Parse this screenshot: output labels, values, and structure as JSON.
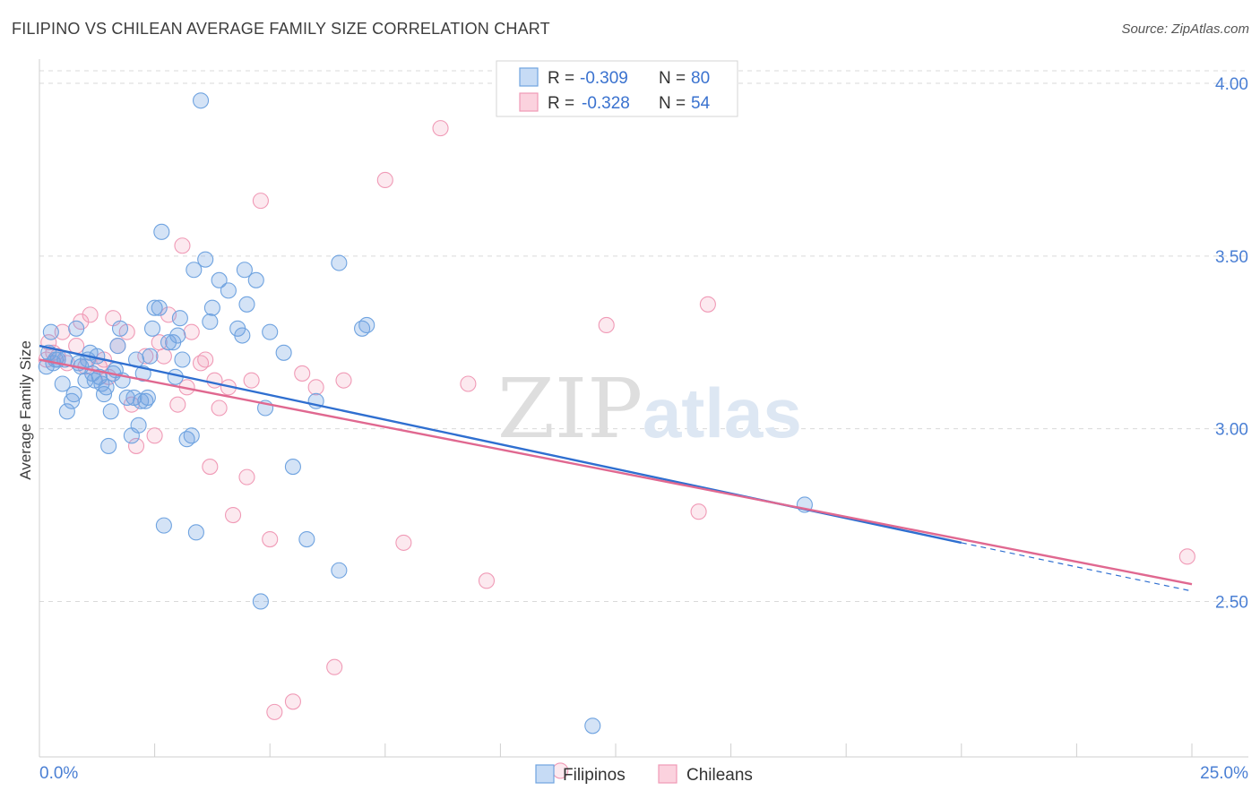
{
  "header": {
    "title": "FILIPINO VS CHILEAN AVERAGE FAMILY SIZE CORRELATION CHART",
    "source": "Source: ZipAtlas.com"
  },
  "colors": {
    "blue": "#6fa3e0",
    "blue_line": "#2f6fd0",
    "pink": "#f09ab6",
    "pink_line": "#e06890",
    "axis_text": "#4a7fd4",
    "grid": "#d9d9d9"
  },
  "legend_top": {
    "rows": [
      {
        "r_label": "R =",
        "r_value": "-0.309",
        "n_label": "N =",
        "n_value": "80"
      },
      {
        "r_label": "R =",
        "r_value": "-0.328",
        "n_label": "N =",
        "n_value": "54"
      }
    ]
  },
  "watermark": {
    "zip": "ZIP",
    "atlas": "atlas"
  },
  "chart_data": {
    "type": "scatter",
    "title": "FILIPINO VS CHILEAN AVERAGE FAMILY SIZE CORRELATION CHART",
    "xlabel": "",
    "ylabel": "Average Family Size",
    "xlim": [
      0,
      25
    ],
    "ylim": [
      2.05,
      4.07
    ],
    "x_tick_labels": [
      "0.0%",
      "25.0%"
    ],
    "y_ticks": [
      2.5,
      3.0,
      3.5,
      4.0
    ],
    "y_tick_labels": [
      "2.50",
      "3.00",
      "3.50",
      "4.00"
    ],
    "grid": true,
    "legend_position": "bottom-center",
    "series": [
      {
        "name": "Filipinos",
        "color": "#6fa3e0",
        "r": -0.309,
        "n": 80,
        "trend": {
          "x0": 0,
          "y0": 3.24,
          "x1": 20,
          "y1": 2.67,
          "dashed_to_x": 25,
          "dashed_to_y": 2.53
        },
        "points": [
          [
            0.2,
            3.22
          ],
          [
            0.25,
            3.28
          ],
          [
            0.3,
            3.19
          ],
          [
            0.4,
            3.2
          ],
          [
            0.5,
            3.13
          ],
          [
            0.6,
            3.05
          ],
          [
            0.7,
            3.08
          ],
          [
            0.75,
            3.1
          ],
          [
            0.8,
            3.29
          ],
          [
            0.9,
            3.18
          ],
          [
            1.0,
            3.14
          ],
          [
            1.05,
            3.2
          ],
          [
            1.1,
            3.22
          ],
          [
            1.2,
            3.14
          ],
          [
            1.25,
            3.21
          ],
          [
            1.3,
            3.15
          ],
          [
            1.4,
            3.1
          ],
          [
            1.5,
            2.95
          ],
          [
            1.55,
            3.05
          ],
          [
            1.6,
            3.16
          ],
          [
            1.7,
            3.24
          ],
          [
            1.75,
            3.29
          ],
          [
            1.8,
            3.14
          ],
          [
            1.9,
            3.09
          ],
          [
            2.0,
            2.98
          ],
          [
            2.1,
            3.2
          ],
          [
            2.15,
            3.01
          ],
          [
            2.2,
            3.08
          ],
          [
            2.25,
            3.16
          ],
          [
            2.3,
            3.08
          ],
          [
            2.4,
            3.21
          ],
          [
            2.45,
            3.29
          ],
          [
            2.5,
            3.35
          ],
          [
            2.6,
            3.35
          ],
          [
            2.65,
            3.57
          ],
          [
            2.7,
            2.72
          ],
          [
            2.8,
            3.25
          ],
          [
            2.9,
            3.25
          ],
          [
            2.95,
            3.15
          ],
          [
            3.0,
            3.27
          ],
          [
            3.05,
            3.32
          ],
          [
            3.1,
            3.2
          ],
          [
            3.2,
            2.97
          ],
          [
            3.3,
            2.98
          ],
          [
            3.35,
            3.46
          ],
          [
            3.5,
            3.95
          ],
          [
            3.6,
            3.49
          ],
          [
            3.7,
            3.31
          ],
          [
            3.75,
            3.35
          ],
          [
            3.9,
            3.43
          ],
          [
            4.1,
            3.4
          ],
          [
            4.3,
            3.29
          ],
          [
            4.4,
            3.27
          ],
          [
            4.45,
            3.46
          ],
          [
            4.5,
            3.36
          ],
          [
            4.7,
            3.43
          ],
          [
            4.8,
            2.5
          ],
          [
            4.9,
            3.06
          ],
          [
            5.0,
            3.28
          ],
          [
            5.3,
            3.22
          ],
          [
            5.5,
            2.89
          ],
          [
            5.8,
            2.68
          ],
          [
            6.0,
            3.08
          ],
          [
            6.5,
            3.48
          ],
          [
            7.0,
            3.29
          ],
          [
            7.1,
            3.3
          ],
          [
            3.4,
            2.7
          ],
          [
            6.5,
            2.59
          ],
          [
            12.0,
            2.14
          ],
          [
            16.6,
            2.78
          ],
          [
            0.15,
            3.18
          ],
          [
            0.35,
            3.2
          ],
          [
            0.55,
            3.2
          ],
          [
            0.85,
            3.19
          ],
          [
            1.15,
            3.16
          ],
          [
            1.35,
            3.13
          ],
          [
            1.45,
            3.12
          ],
          [
            1.65,
            3.17
          ],
          [
            2.05,
            3.09
          ],
          [
            2.35,
            3.09
          ]
        ]
      },
      {
        "name": "Chileans",
        "color": "#f09ab6",
        "r": -0.328,
        "n": 54,
        "trend": {
          "x0": 0,
          "y0": 3.2,
          "x1": 25,
          "y1": 2.55
        },
        "points": [
          [
            0.2,
            3.25
          ],
          [
            0.3,
            3.22
          ],
          [
            0.4,
            3.21
          ],
          [
            0.5,
            3.28
          ],
          [
            0.6,
            3.19
          ],
          [
            0.8,
            3.24
          ],
          [
            1.0,
            3.18
          ],
          [
            1.1,
            3.33
          ],
          [
            1.3,
            3.18
          ],
          [
            1.4,
            3.2
          ],
          [
            1.5,
            3.15
          ],
          [
            1.6,
            3.32
          ],
          [
            1.7,
            3.24
          ],
          [
            1.9,
            3.28
          ],
          [
            2.0,
            3.07
          ],
          [
            2.1,
            2.95
          ],
          [
            2.3,
            3.21
          ],
          [
            2.5,
            2.98
          ],
          [
            2.6,
            3.25
          ],
          [
            2.7,
            3.21
          ],
          [
            2.8,
            3.33
          ],
          [
            3.0,
            3.07
          ],
          [
            3.1,
            3.53
          ],
          [
            3.2,
            3.12
          ],
          [
            3.3,
            3.28
          ],
          [
            3.5,
            3.19
          ],
          [
            3.6,
            3.2
          ],
          [
            3.7,
            2.89
          ],
          [
            3.8,
            3.14
          ],
          [
            3.9,
            3.06
          ],
          [
            4.1,
            3.12
          ],
          [
            4.2,
            2.75
          ],
          [
            4.5,
            2.86
          ],
          [
            4.6,
            3.14
          ],
          [
            4.8,
            3.66
          ],
          [
            5.0,
            2.68
          ],
          [
            5.1,
            2.18
          ],
          [
            5.5,
            2.21
          ],
          [
            5.7,
            3.16
          ],
          [
            6.0,
            3.12
          ],
          [
            6.4,
            2.31
          ],
          [
            6.6,
            3.14
          ],
          [
            7.5,
            3.72
          ],
          [
            7.9,
            2.67
          ],
          [
            8.7,
            3.87
          ],
          [
            9.3,
            3.13
          ],
          [
            9.7,
            2.56
          ],
          [
            11.3,
            2.01
          ],
          [
            12.3,
            3.3
          ],
          [
            14.3,
            2.76
          ],
          [
            14.5,
            3.36
          ],
          [
            24.9,
            2.63
          ],
          [
            0.15,
            3.2
          ],
          [
            0.9,
            3.31
          ]
        ]
      }
    ]
  },
  "legend_bottom": {
    "items": [
      {
        "label": "Filipinos"
      },
      {
        "label": "Chileans"
      }
    ]
  }
}
